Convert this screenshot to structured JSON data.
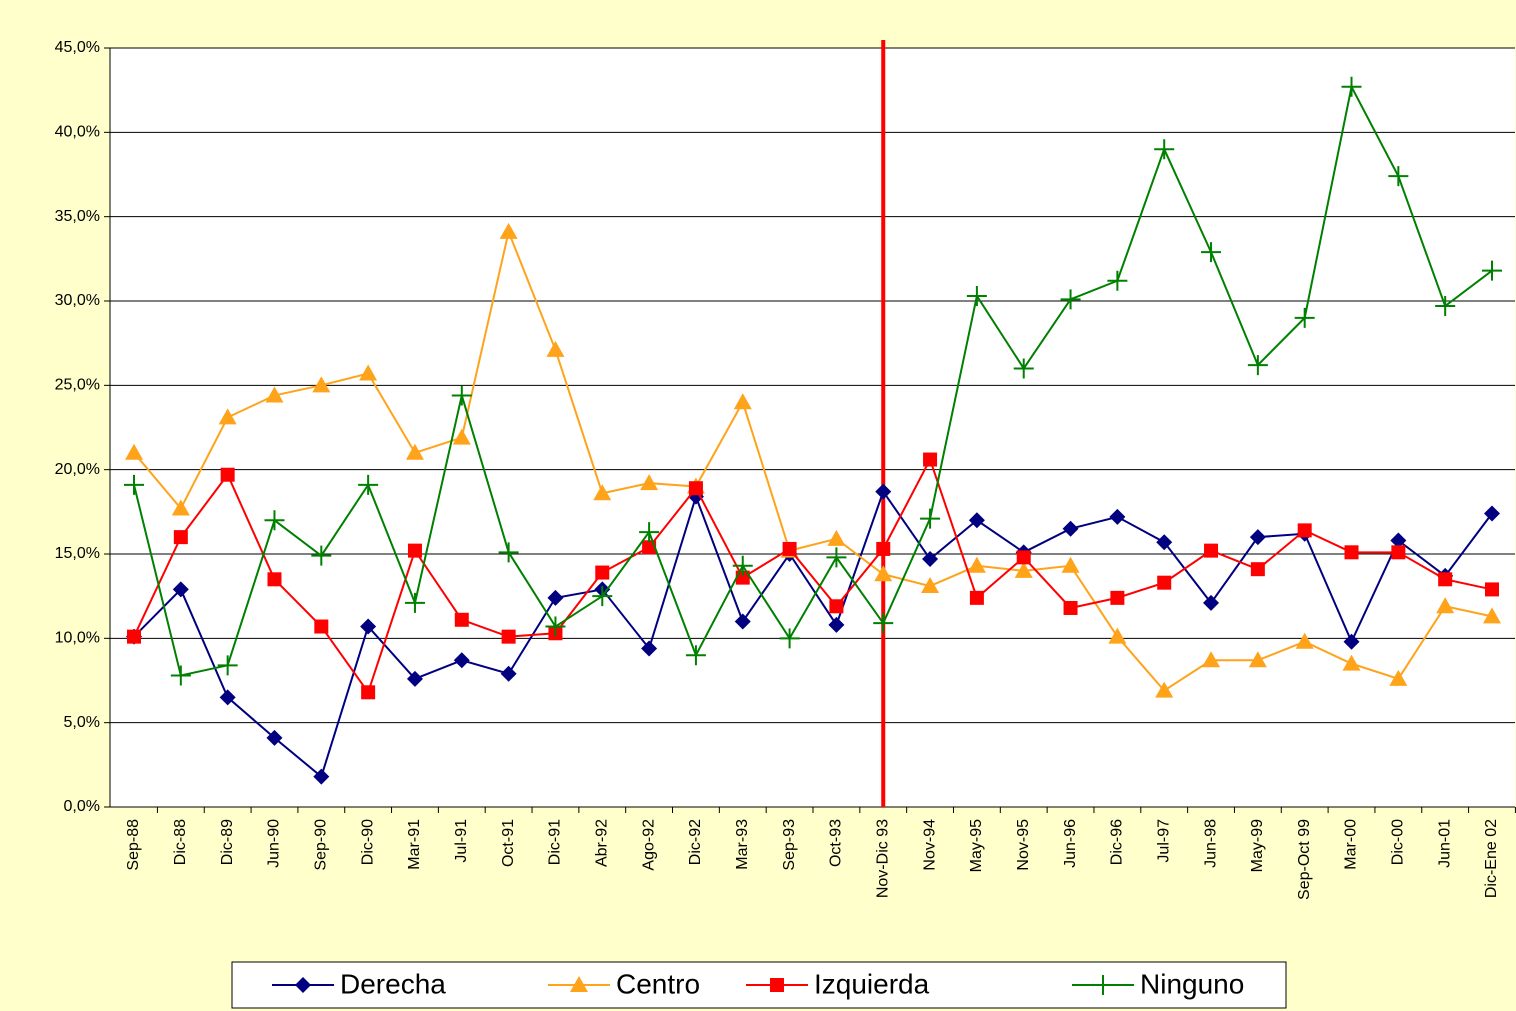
{
  "chart_data": {
    "type": "line",
    "categories": [
      "Sep-88",
      "Dic-88",
      "Dic-89",
      "Jun-90",
      "Sep-90",
      "Dic-90",
      "Mar-91",
      "Jul-91",
      "Oct-91",
      "Dic-91",
      "Abr-92",
      "Ago-92",
      "Dic-92",
      "Mar-93",
      "Sep-93",
      "Oct-93",
      "Nov-Dic 93",
      "Nov-94",
      "May-95",
      "Nov-95",
      "Jun-96",
      "Dic-96",
      "Jul-97",
      "Jun-98",
      "May-99",
      "Sep-Oct 99",
      "Mar-00",
      "Dic-00",
      "Jun-01",
      "Dic-Ene 02"
    ],
    "series": [
      {
        "name": "Derecha",
        "color": "#000080",
        "marker": "diamond",
        "values": [
          10.1,
          12.9,
          6.5,
          4.1,
          1.8,
          10.7,
          7.6,
          8.7,
          7.9,
          12.4,
          12.9,
          9.4,
          18.4,
          11.0,
          15.0,
          10.8,
          18.7,
          14.7,
          17.0,
          15.1,
          16.5,
          17.2,
          15.7,
          12.1,
          16.0,
          16.2,
          9.8,
          15.8,
          13.7,
          17.4
        ]
      },
      {
        "name": "Centro",
        "color": "#ffa31a",
        "marker": "triangle",
        "values": [
          21.0,
          17.7,
          23.1,
          24.4,
          25.0,
          25.7,
          21.0,
          21.9,
          34.1,
          27.1,
          18.6,
          19.2,
          19.0,
          24.0,
          15.2,
          15.9,
          13.8,
          13.1,
          14.3,
          14.0,
          14.3,
          10.1,
          6.9,
          8.7,
          8.7,
          9.8,
          8.5,
          7.6,
          11.9,
          11.3
        ]
      },
      {
        "name": "Izquierda",
        "color": "#ff0000",
        "marker": "square",
        "values": [
          10.1,
          16.0,
          19.7,
          13.5,
          10.7,
          6.8,
          15.2,
          11.1,
          10.1,
          10.3,
          13.9,
          15.4,
          18.9,
          13.6,
          15.3,
          11.9,
          15.3,
          20.6,
          12.4,
          14.8,
          11.8,
          12.4,
          13.3,
          15.2,
          14.1,
          16.4,
          15.1,
          15.1,
          13.5,
          12.9
        ]
      },
      {
        "name": "Ninguno",
        "color": "#008000",
        "marker": "plus",
        "values": [
          19.1,
          7.8,
          8.4,
          17.0,
          14.9,
          19.1,
          12.1,
          24.4,
          15.1,
          10.7,
          12.5,
          16.3,
          9.0,
          14.3,
          10.0,
          14.8,
          10.9,
          17.1,
          30.3,
          26.0,
          30.1,
          31.2,
          39.0,
          32.9,
          26.2,
          29.0,
          42.7,
          37.4,
          29.7,
          31.8
        ]
      }
    ],
    "ylim": [
      0,
      45
    ],
    "yticks": [
      {
        "value": 0,
        "label": "0,0%"
      },
      {
        "value": 5,
        "label": "5,0%"
      },
      {
        "value": 10,
        "label": "10,0%"
      },
      {
        "value": 15,
        "label": "15,0%"
      },
      {
        "value": 20,
        "label": "20,0%"
      },
      {
        "value": 25,
        "label": "25,0%"
      },
      {
        "value": 30,
        "label": "30,0%"
      },
      {
        "value": 35,
        "label": "35,0%"
      },
      {
        "value": 40,
        "label": "40,0%"
      },
      {
        "value": 45,
        "label": "45,0%"
      }
    ],
    "grid": true,
    "legend": "bottom"
  }
}
